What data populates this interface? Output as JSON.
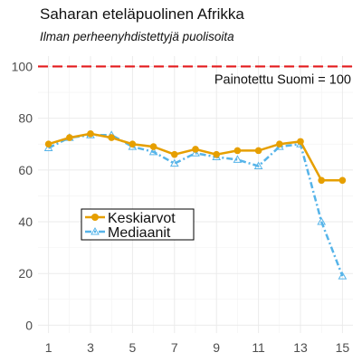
{
  "chart_data": {
    "type": "line",
    "title": "Saharan eteläpuolinen Afrikka",
    "subtitle": "Ilman perheenyhdistettyjä puolisoita",
    "xlabel": "",
    "ylabel": "",
    "x": [
      1,
      2,
      3,
      4,
      5,
      6,
      7,
      8,
      9,
      10,
      11,
      12,
      13,
      14,
      15
    ],
    "xticks": [
      1,
      3,
      5,
      7,
      9,
      11,
      13,
      15
    ],
    "yticks": [
      0,
      20,
      40,
      60,
      80,
      100
    ],
    "xlim": [
      0.5,
      15.5
    ],
    "ylim": [
      -3,
      104
    ],
    "grid": true,
    "series": [
      {
        "name": "Keskiarvot",
        "color": "#E69F00",
        "values": [
          70,
          72.5,
          74,
          72.5,
          70,
          69,
          66,
          68,
          66,
          67.5,
          67.5,
          70,
          71,
          56,
          56
        ]
      },
      {
        "name": "Mediaanit",
        "color": "#56B4E9",
        "values": [
          68.5,
          72.5,
          73.5,
          73.5,
          69,
          67,
          62.5,
          66.5,
          65,
          64,
          61.5,
          69,
          70,
          40,
          19
        ]
      }
    ],
    "reference_line": {
      "value": 100,
      "label": "Painotettu Suomi = 100",
      "color": "#E31A1C"
    },
    "legend_position": "middle-left"
  }
}
